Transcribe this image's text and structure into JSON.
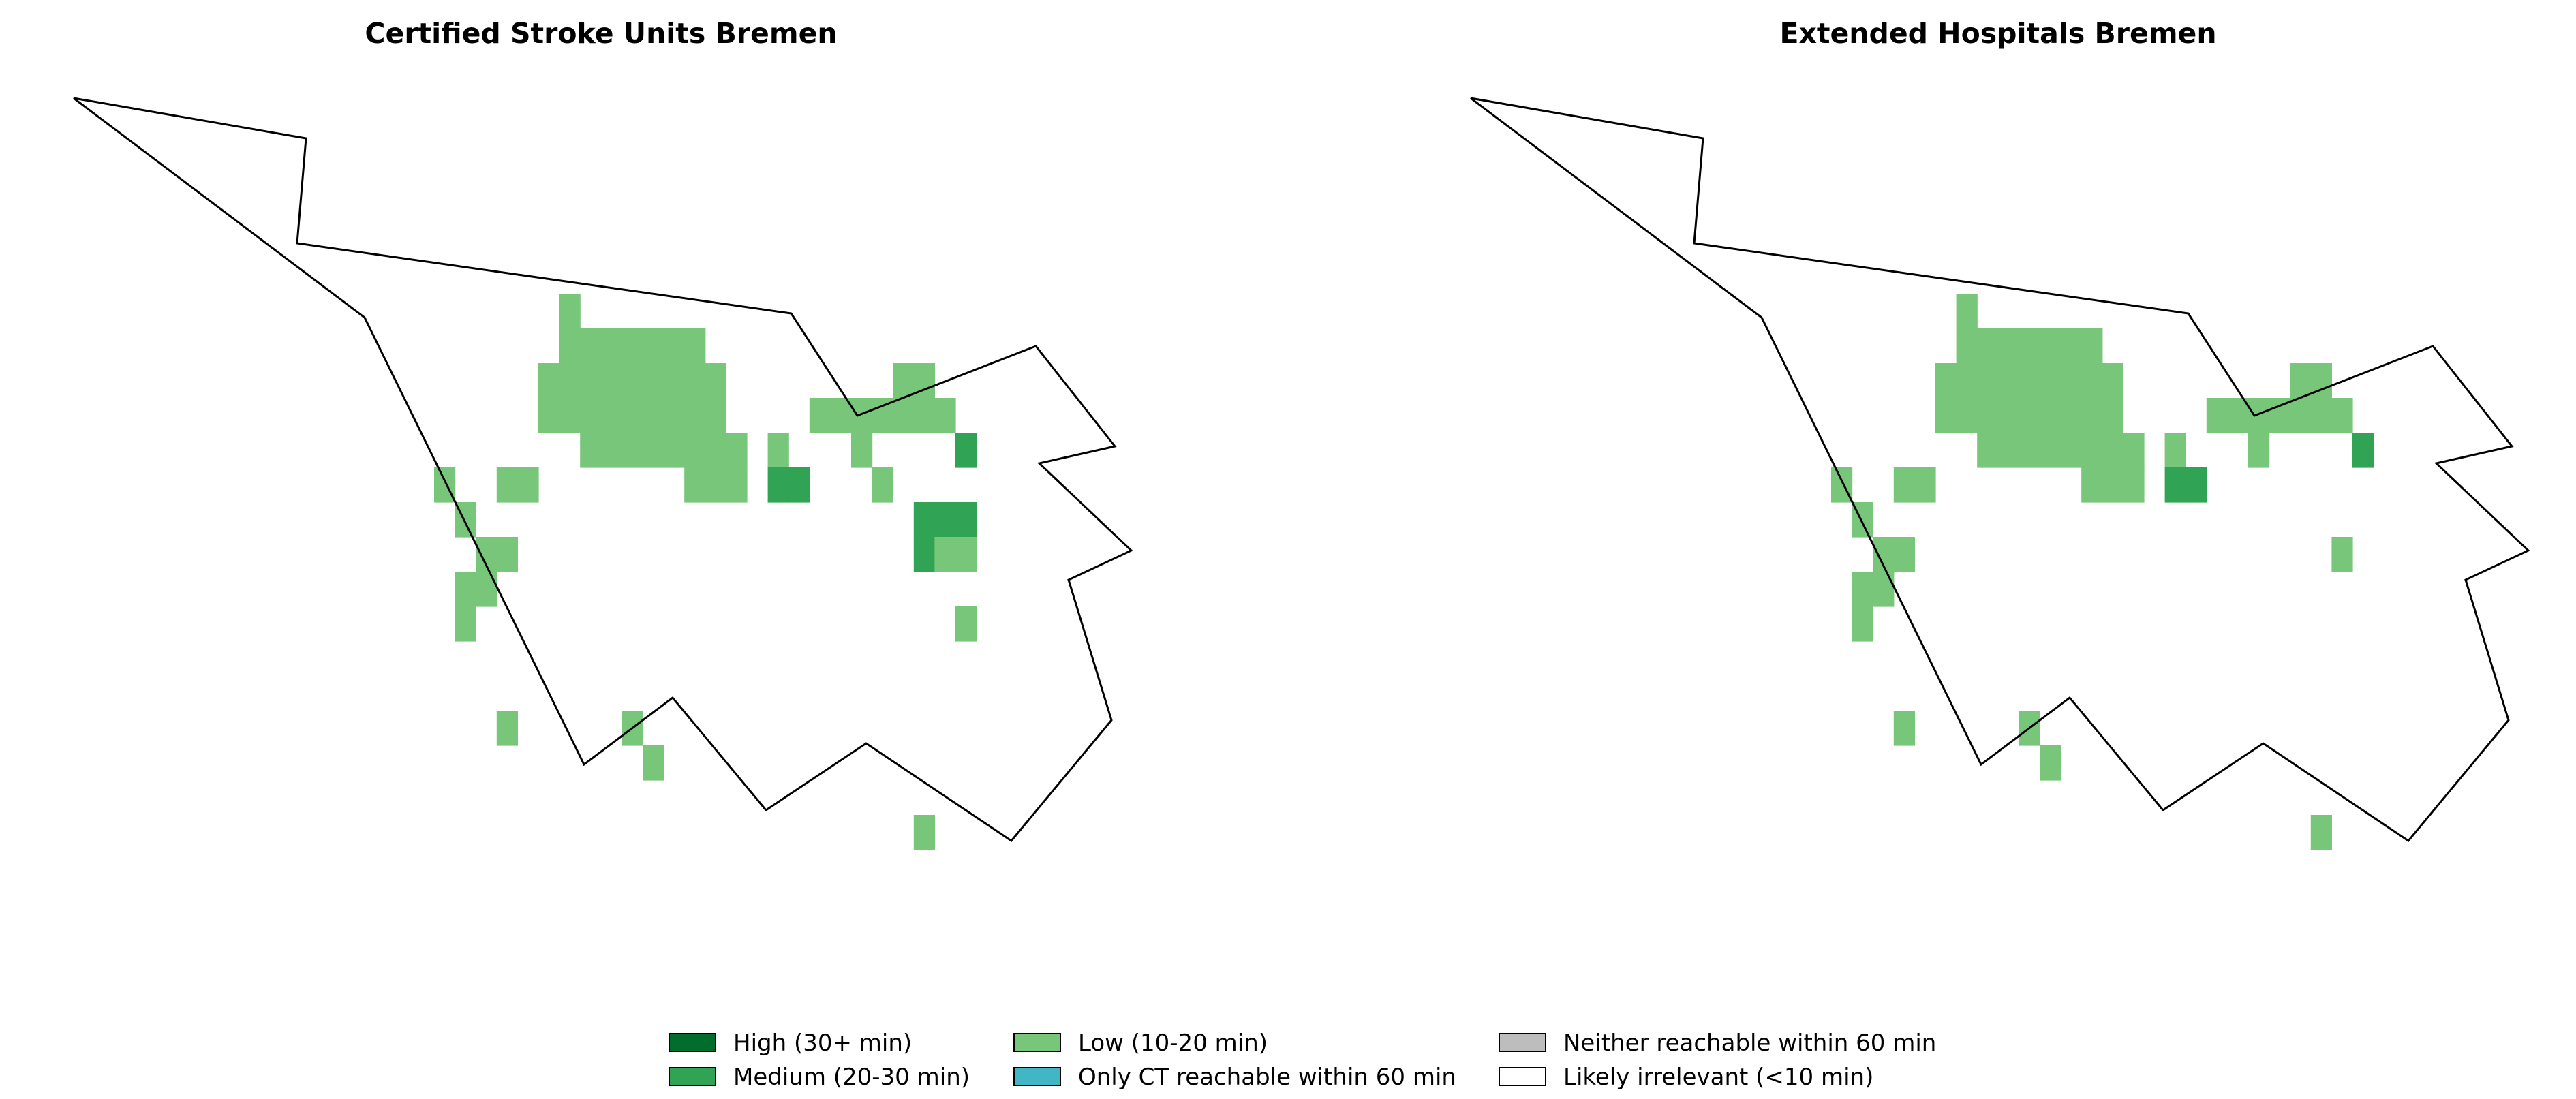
{
  "maps": [
    {
      "title": "Certified Stroke Units Bremen",
      "cells": [
        {
          "col": "Low",
          "r": 0,
          "c": 6
        },
        {
          "col": "Low",
          "r": 1,
          "c": 6
        },
        {
          "col": "Low",
          "r": 1,
          "c": 7
        },
        {
          "col": "Low",
          "r": 1,
          "c": 8
        },
        {
          "col": "Low",
          "r": 1,
          "c": 9
        },
        {
          "col": "Low",
          "r": 1,
          "c": 10
        },
        {
          "col": "Low",
          "r": 1,
          "c": 11
        },
        {
          "col": "Low",
          "r": 1,
          "c": 12
        },
        {
          "col": "Low",
          "r": 2,
          "c": 5
        },
        {
          "col": "Low",
          "r": 2,
          "c": 6
        },
        {
          "col": "Low",
          "r": 2,
          "c": 7
        },
        {
          "col": "Low",
          "r": 2,
          "c": 8
        },
        {
          "col": "Low",
          "r": 2,
          "c": 9
        },
        {
          "col": "Low",
          "r": 2,
          "c": 10
        },
        {
          "col": "Low",
          "r": 2,
          "c": 11
        },
        {
          "col": "Low",
          "r": 2,
          "c": 12
        },
        {
          "col": "Low",
          "r": 2,
          "c": 13
        },
        {
          "col": "Low",
          "r": 2,
          "c": 22
        },
        {
          "col": "Low",
          "r": 2,
          "c": 23
        },
        {
          "col": "Low",
          "r": 3,
          "c": 5
        },
        {
          "col": "Low",
          "r": 3,
          "c": 6
        },
        {
          "col": "Low",
          "r": 3,
          "c": 7
        },
        {
          "col": "Low",
          "r": 3,
          "c": 8
        },
        {
          "col": "Low",
          "r": 3,
          "c": 9
        },
        {
          "col": "Low",
          "r": 3,
          "c": 10
        },
        {
          "col": "Low",
          "r": 3,
          "c": 11
        },
        {
          "col": "Low",
          "r": 3,
          "c": 12
        },
        {
          "col": "Low",
          "r": 3,
          "c": 13
        },
        {
          "col": "Low",
          "r": 3,
          "c": 18
        },
        {
          "col": "Low",
          "r": 3,
          "c": 19
        },
        {
          "col": "Low",
          "r": 3,
          "c": 20
        },
        {
          "col": "Low",
          "r": 3,
          "c": 21
        },
        {
          "col": "Low",
          "r": 3,
          "c": 22
        },
        {
          "col": "Low",
          "r": 3,
          "c": 23
        },
        {
          "col": "Low",
          "r": 3,
          "c": 24
        },
        {
          "col": "Low",
          "r": 4,
          "c": 7
        },
        {
          "col": "Low",
          "r": 4,
          "c": 8
        },
        {
          "col": "Low",
          "r": 4,
          "c": 9
        },
        {
          "col": "Low",
          "r": 4,
          "c": 10
        },
        {
          "col": "Low",
          "r": 4,
          "c": 11
        },
        {
          "col": "Low",
          "r": 4,
          "c": 12
        },
        {
          "col": "Low",
          "r": 4,
          "c": 13
        },
        {
          "col": "Low",
          "r": 4,
          "c": 14
        },
        {
          "col": "Low",
          "r": 4,
          "c": 16
        },
        {
          "col": "Low",
          "r": 4,
          "c": 20
        },
        {
          "col": "Medium",
          "r": 4,
          "c": 25
        },
        {
          "col": "Low",
          "r": 5,
          "c": 0
        },
        {
          "col": "Low",
          "r": 5,
          "c": 3
        },
        {
          "col": "Low",
          "r": 5,
          "c": 4
        },
        {
          "col": "Low",
          "r": 5,
          "c": 12
        },
        {
          "col": "Low",
          "r": 5,
          "c": 13
        },
        {
          "col": "Low",
          "r": 5,
          "c": 14
        },
        {
          "col": "Medium",
          "r": 5,
          "c": 16
        },
        {
          "col": "Medium",
          "r": 5,
          "c": 17
        },
        {
          "col": "Low",
          "r": 5,
          "c": 21
        },
        {
          "col": "Low",
          "r": 6,
          "c": 1
        },
        {
          "col": "Medium",
          "r": 6,
          "c": 23
        },
        {
          "col": "Medium",
          "r": 6,
          "c": 24
        },
        {
          "col": "Medium",
          "r": 6,
          "c": 25
        },
        {
          "col": "Low",
          "r": 7,
          "c": 2
        },
        {
          "col": "Low",
          "r": 7,
          "c": 3
        },
        {
          "col": "Medium",
          "r": 7,
          "c": 23
        },
        {
          "col": "Low",
          "r": 7,
          "c": 24
        },
        {
          "col": "Low",
          "r": 7,
          "c": 25
        },
        {
          "col": "Low",
          "r": 8,
          "c": 1
        },
        {
          "col": "Low",
          "r": 8,
          "c": 2
        },
        {
          "col": "Low",
          "r": 9,
          "c": 1
        },
        {
          "col": "Low",
          "r": 9,
          "c": 25
        },
        {
          "col": "Low",
          "r": 12,
          "c": 3
        },
        {
          "col": "Low",
          "r": 12,
          "c": 9
        },
        {
          "col": "Low",
          "r": 13,
          "c": 10
        },
        {
          "col": "Low",
          "r": 15,
          "c": 23
        }
      ]
    },
    {
      "title": "Extended Hospitals Bremen",
      "cells": [
        {
          "col": "Low",
          "r": 0,
          "c": 6
        },
        {
          "col": "Low",
          "r": 1,
          "c": 6
        },
        {
          "col": "Low",
          "r": 1,
          "c": 7
        },
        {
          "col": "Low",
          "r": 1,
          "c": 8
        },
        {
          "col": "Low",
          "r": 1,
          "c": 9
        },
        {
          "col": "Low",
          "r": 1,
          "c": 10
        },
        {
          "col": "Low",
          "r": 1,
          "c": 11
        },
        {
          "col": "Low",
          "r": 1,
          "c": 12
        },
        {
          "col": "Low",
          "r": 2,
          "c": 5
        },
        {
          "col": "Low",
          "r": 2,
          "c": 6
        },
        {
          "col": "Low",
          "r": 2,
          "c": 7
        },
        {
          "col": "Low",
          "r": 2,
          "c": 8
        },
        {
          "col": "Low",
          "r": 2,
          "c": 9
        },
        {
          "col": "Low",
          "r": 2,
          "c": 10
        },
        {
          "col": "Low",
          "r": 2,
          "c": 11
        },
        {
          "col": "Low",
          "r": 2,
          "c": 12
        },
        {
          "col": "Low",
          "r": 2,
          "c": 13
        },
        {
          "col": "Low",
          "r": 2,
          "c": 22
        },
        {
          "col": "Low",
          "r": 2,
          "c": 23
        },
        {
          "col": "Low",
          "r": 3,
          "c": 5
        },
        {
          "col": "Low",
          "r": 3,
          "c": 6
        },
        {
          "col": "Low",
          "r": 3,
          "c": 7
        },
        {
          "col": "Low",
          "r": 3,
          "c": 8
        },
        {
          "col": "Low",
          "r": 3,
          "c": 9
        },
        {
          "col": "Low",
          "r": 3,
          "c": 10
        },
        {
          "col": "Low",
          "r": 3,
          "c": 11
        },
        {
          "col": "Low",
          "r": 3,
          "c": 12
        },
        {
          "col": "Low",
          "r": 3,
          "c": 13
        },
        {
          "col": "Low",
          "r": 3,
          "c": 18
        },
        {
          "col": "Low",
          "r": 3,
          "c": 19
        },
        {
          "col": "Low",
          "r": 3,
          "c": 20
        },
        {
          "col": "Low",
          "r": 3,
          "c": 21
        },
        {
          "col": "Low",
          "r": 3,
          "c": 22
        },
        {
          "col": "Low",
          "r": 3,
          "c": 23
        },
        {
          "col": "Low",
          "r": 3,
          "c": 24
        },
        {
          "col": "Low",
          "r": 4,
          "c": 7
        },
        {
          "col": "Low",
          "r": 4,
          "c": 8
        },
        {
          "col": "Low",
          "r": 4,
          "c": 9
        },
        {
          "col": "Low",
          "r": 4,
          "c": 10
        },
        {
          "col": "Low",
          "r": 4,
          "c": 11
        },
        {
          "col": "Low",
          "r": 4,
          "c": 12
        },
        {
          "col": "Low",
          "r": 4,
          "c": 13
        },
        {
          "col": "Low",
          "r": 4,
          "c": 14
        },
        {
          "col": "Low",
          "r": 4,
          "c": 16
        },
        {
          "col": "Low",
          "r": 4,
          "c": 20
        },
        {
          "col": "Medium",
          "r": 4,
          "c": 25
        },
        {
          "col": "Low",
          "r": 5,
          "c": 0
        },
        {
          "col": "Low",
          "r": 5,
          "c": 3
        },
        {
          "col": "Low",
          "r": 5,
          "c": 4
        },
        {
          "col": "Low",
          "r": 5,
          "c": 12
        },
        {
          "col": "Low",
          "r": 5,
          "c": 13
        },
        {
          "col": "Low",
          "r": 5,
          "c": 14
        },
        {
          "col": "Medium",
          "r": 5,
          "c": 16
        },
        {
          "col": "Medium",
          "r": 5,
          "c": 17
        },
        {
          "col": "Low",
          "r": 6,
          "c": 1
        },
        {
          "col": "Low",
          "r": 7,
          "c": 2
        },
        {
          "col": "Low",
          "r": 7,
          "c": 3
        },
        {
          "col": "Low",
          "r": 7,
          "c": 24
        },
        {
          "col": "Low",
          "r": 8,
          "c": 1
        },
        {
          "col": "Low",
          "r": 8,
          "c": 2
        },
        {
          "col": "Low",
          "r": 9,
          "c": 1
        },
        {
          "col": "Low",
          "r": 12,
          "c": 3
        },
        {
          "col": "Low",
          "r": 12,
          "c": 9
        },
        {
          "col": "Low",
          "r": 13,
          "c": 10
        },
        {
          "col": "Low",
          "r": 15,
          "c": 23
        }
      ]
    }
  ],
  "legend": [
    {
      "key": "High",
      "label": "High (30+ min)",
      "color": "#006d2c"
    },
    {
      "key": "Medium",
      "label": "Medium (20-30 min)",
      "color": "#31a354"
    },
    {
      "key": "Low",
      "label": "Low (10-20 min)",
      "color": "#78c679"
    },
    {
      "key": "CT",
      "label": "Only CT reachable within 60 min",
      "color": "#41b6c4"
    },
    {
      "key": "Neither",
      "label": "Neither reachable within 60 min",
      "color": "#bdbdbd"
    },
    {
      "key": "Irrelevant",
      "label": "Likely irrelevant (<10 min)",
      "color": "#ffffff"
    }
  ]
}
